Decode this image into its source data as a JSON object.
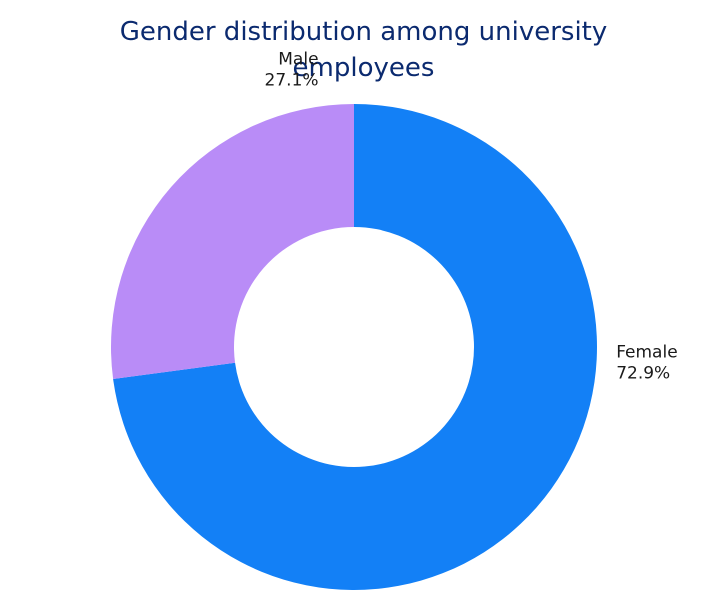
{
  "chart_data": {
    "type": "pie",
    "donut": true,
    "title_lines": [
      "Gender distribution among university",
      "employees"
    ],
    "slices": [
      {
        "label": "Female",
        "value": 72.9,
        "value_label": "72.9%",
        "color": "#1380f6"
      },
      {
        "label": "Male",
        "value": 27.1,
        "value_label": "27.1%",
        "color": "#b98cf7"
      }
    ],
    "start_angle_deg": 0,
    "direction": "clockwise",
    "legend": "none"
  }
}
